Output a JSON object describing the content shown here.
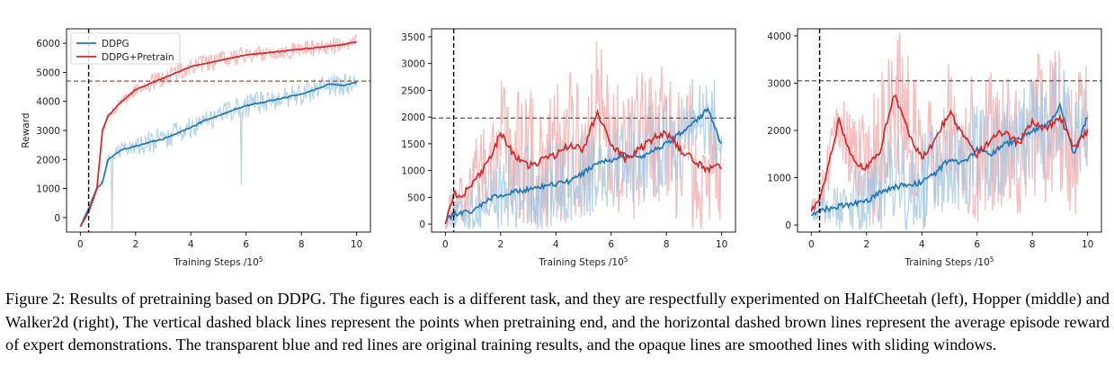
{
  "caption": "Figure 2: Results of pretraining based on DDPG. The figures each is a different task, and they are respectfully experimented on HalfCheetah (left), Hopper (middle) and Walker2d (right), The vertical dashed black lines represent the points when pretraining end, and the horizontal dashed brown lines represent the average episode reward of expert demonstrations. The transparent blue and red lines are original training results, and the opaque lines are smoothed lines with sliding windows.",
  "colors": {
    "ddpg": "#1f77b4",
    "ddpg_pretrain": "#d62728",
    "ddpg_raw": "#9fc5e0",
    "ddpg_pretrain_raw": "#f0a3a3",
    "expert_line": "#8c564b",
    "pretrain_end_line": "#000000"
  },
  "chart_data": [
    {
      "type": "line",
      "xlabel_base": "Training Steps /10",
      "xlabel_exp": "5",
      "ylabel": "Reward",
      "xlim": [
        -0.5,
        10.5
      ],
      "ylim": [
        -500,
        6500
      ],
      "xticks": [
        "0",
        "2",
        "4",
        "6",
        "8",
        "10"
      ],
      "xtick_values": [
        0,
        2,
        4,
        6,
        8,
        10
      ],
      "yticks": [
        "0",
        "1000",
        "2000",
        "3000",
        "4000",
        "5000",
        "6000"
      ],
      "ytick_values": [
        0,
        1000,
        2000,
        3000,
        4000,
        5000,
        6000
      ],
      "legend": {
        "location": "upper-left",
        "entries": [
          "DDPG",
          "DDPG+Pretrain"
        ]
      },
      "pretrain_end_x": 0.3,
      "expert_reward": 4700,
      "x": [
        0,
        0.3,
        0.6,
        0.8,
        1,
        1.5,
        2,
        2.5,
        3,
        3.5,
        4,
        4.5,
        5,
        5.5,
        6,
        6.5,
        7,
        7.5,
        8,
        8.5,
        9,
        9.5,
        10
      ],
      "series": [
        {
          "name": "DDPG",
          "values": [
            -300,
            300,
            1000,
            1200,
            2000,
            2350,
            2450,
            2600,
            2700,
            2900,
            3100,
            3350,
            3500,
            3700,
            3850,
            3950,
            4050,
            4150,
            4250,
            4400,
            4600,
            4550,
            4650
          ],
          "raw_spread": 400
        },
        {
          "name": "DDPG+Pretrain",
          "values": [
            -300,
            200,
            1000,
            3000,
            3500,
            4000,
            4400,
            4600,
            4800,
            5000,
            5200,
            5300,
            5400,
            5500,
            5600,
            5650,
            5700,
            5750,
            5800,
            5850,
            5900,
            5950,
            6050
          ],
          "raw_spread": 300
        }
      ]
    },
    {
      "type": "line",
      "xlabel_base": "Training Steps /10",
      "xlabel_exp": "5",
      "ylabel": "",
      "xlim": [
        -0.5,
        10.5
      ],
      "ylim": [
        -150,
        3650
      ],
      "xticks": [
        "0",
        "2",
        "4",
        "6",
        "8",
        "10"
      ],
      "xtick_values": [
        0,
        2,
        4,
        6,
        8,
        10
      ],
      "yticks": [
        "0",
        "500",
        "1000",
        "1500",
        "2000",
        "2500",
        "3000",
        "3500"
      ],
      "ytick_values": [
        0,
        500,
        1000,
        1500,
        2000,
        2500,
        3000,
        3500
      ],
      "pretrain_end_x": 0.3,
      "expert_reward": 1980,
      "x": [
        0,
        0.3,
        0.6,
        1,
        1.5,
        2,
        2.5,
        3,
        3.5,
        4,
        4.5,
        5,
        5.5,
        6,
        6.5,
        7,
        7.5,
        8,
        8.5,
        9,
        9.5,
        10
      ],
      "series": [
        {
          "name": "DDPG",
          "values": [
            50,
            180,
            200,
            250,
            450,
            550,
            600,
            650,
            700,
            750,
            800,
            950,
            1150,
            1200,
            1300,
            1250,
            1350,
            1500,
            1700,
            1900,
            2150,
            1500
          ],
          "raw_spread": 900
        },
        {
          "name": "DDPG+Pretrain",
          "values": [
            50,
            550,
            500,
            800,
            1100,
            1700,
            1300,
            1100,
            1200,
            1300,
            1500,
            1400,
            2100,
            1500,
            1200,
            1400,
            1600,
            1700,
            1400,
            1200,
            1000,
            1100
          ],
          "raw_spread": 1400
        }
      ]
    },
    {
      "type": "line",
      "xlabel_base": "Training Steps /10",
      "xlabel_exp": "5",
      "ylabel": "",
      "xlim": [
        -0.5,
        10.5
      ],
      "ylim": [
        -150,
        4150
      ],
      "xticks": [
        "0",
        "2",
        "4",
        "6",
        "8",
        "10"
      ],
      "xtick_values": [
        0,
        2,
        4,
        6,
        8,
        10
      ],
      "yticks": [
        "0",
        "1000",
        "2000",
        "3000",
        "4000"
      ],
      "ytick_values": [
        0,
        1000,
        2000,
        3000,
        4000
      ],
      "pretrain_end_x": 0.3,
      "expert_reward": 3050,
      "x": [
        0,
        0.3,
        0.6,
        1,
        1.5,
        2,
        2.5,
        3,
        3.5,
        4,
        4.5,
        5,
        5.5,
        6,
        6.5,
        7,
        7.5,
        8,
        8.5,
        9,
        9.5,
        10
      ],
      "series": [
        {
          "name": "DDPG",
          "values": [
            250,
            300,
            350,
            400,
            450,
            500,
            700,
            800,
            850,
            900,
            1100,
            1400,
            1300,
            1600,
            1500,
            1700,
            1800,
            2000,
            2100,
            2500,
            1500,
            2300
          ],
          "raw_spread": 1100
        },
        {
          "name": "DDPG+Pretrain",
          "values": [
            350,
            500,
            1200,
            2200,
            1400,
            1200,
            1600,
            2800,
            2000,
            1400,
            1800,
            2400,
            1900,
            1500,
            1800,
            2000,
            1700,
            2200,
            2000,
            2300,
            1600,
            2000
          ],
          "raw_spread": 1600
        }
      ]
    }
  ]
}
